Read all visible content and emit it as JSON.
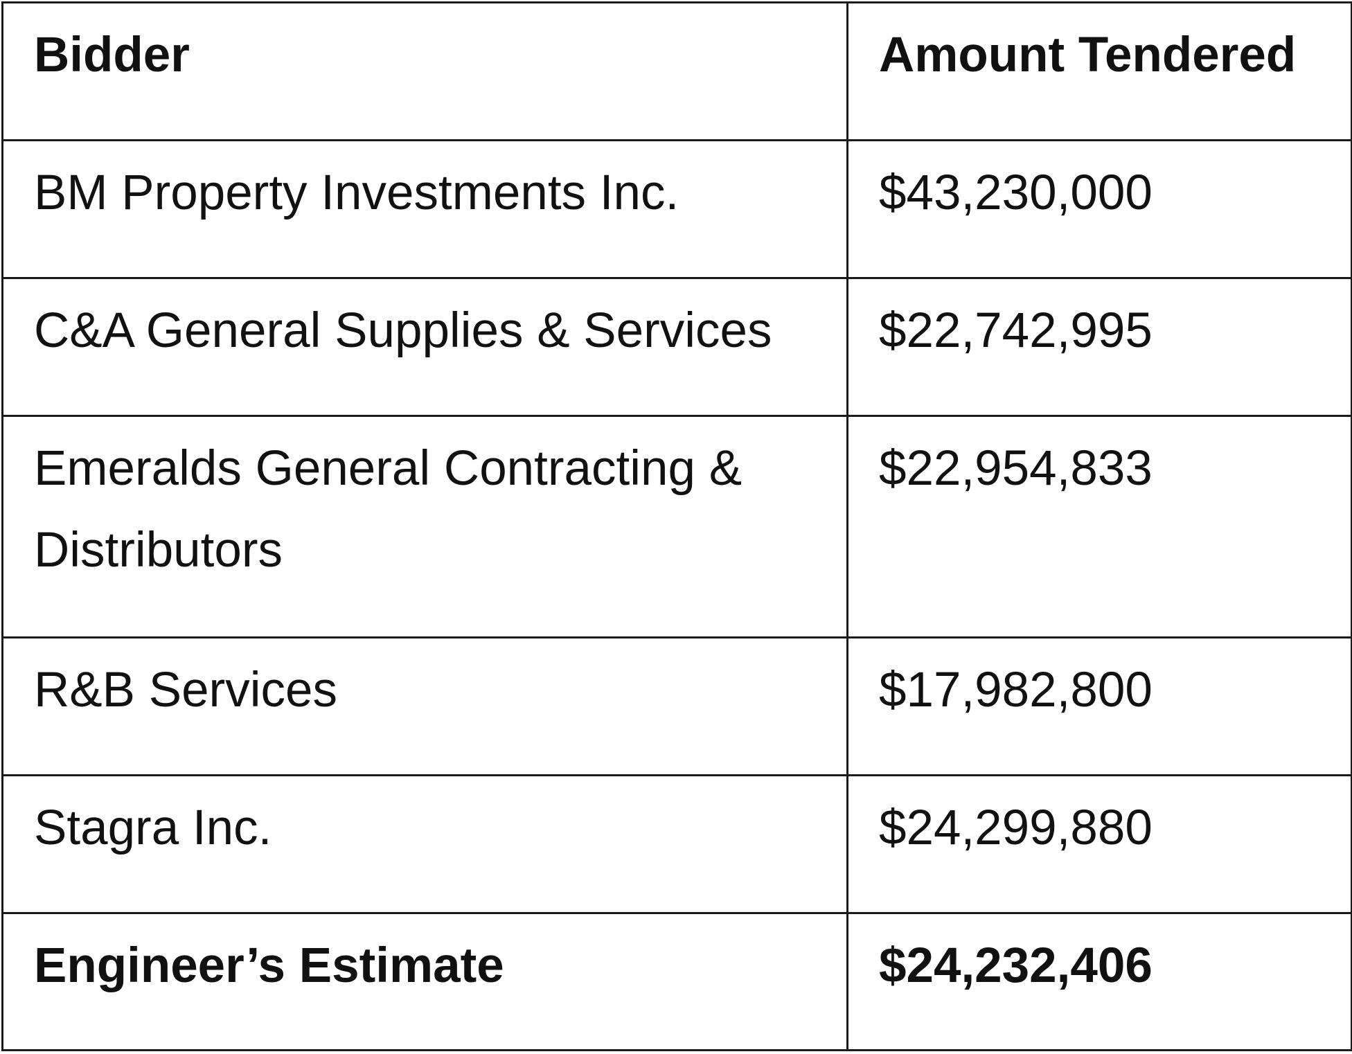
{
  "table": {
    "headers": [
      "Bidder",
      "Amount Tendered"
    ],
    "rows": [
      {
        "bidder": "BM Property Investments Inc.",
        "amount": "$43,230,000"
      },
      {
        "bidder": "C&A General Supplies & Services",
        "amount": "$22,742,995"
      },
      {
        "bidder": "Emeralds General Contracting & Distributors",
        "amount": "$22,954,833"
      },
      {
        "bidder": "R&B Services",
        "amount": "$17,982,800"
      },
      {
        "bidder": "Stagra Inc.",
        "amount": "$24,299,880"
      }
    ],
    "estimate": {
      "label": "Engineer’s Estimate",
      "amount": "$24,232,406"
    }
  }
}
